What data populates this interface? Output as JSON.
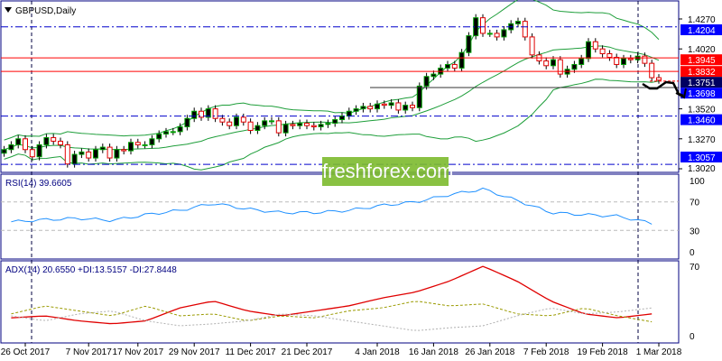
{
  "header": {
    "title": "GBPUSD,Daily"
  },
  "watermark": "freshforex.com",
  "colors": {
    "frame": "#000080",
    "up": "#00a000",
    "down": "#e00000",
    "band": "#1e9e3a",
    "rsi": "#1e90ff",
    "adx": "#e00000",
    "plus_di": "#9a9a00",
    "minus_di": "#b0b0b0",
    "level_blue": "#0000ff",
    "level_red": "#ff0000"
  },
  "chart_data": [
    {
      "type": "candlestick",
      "title": "GBPUSD,Daily",
      "ylim": [
        1.302,
        1.43
      ],
      "y_ticks": [
        "1.4270",
        "1.4020",
        "1.3520",
        "1.3270",
        "1.3020"
      ],
      "x_labels": [
        {
          "i": 3,
          "label": "26 Oct 2017"
        },
        {
          "i": 12,
          "label": "7 Nov 2017"
        },
        {
          "i": 19,
          "label": "17 Nov 2017"
        },
        {
          "i": 27,
          "label": "29 Nov 2017"
        },
        {
          "i": 35,
          "label": "11 Dec 2017"
        },
        {
          "i": 43,
          "label": "21 Dec 2017"
        },
        {
          "i": 53,
          "label": "4 Jan 2018"
        },
        {
          "i": 61,
          "label": "16 Jan 2018"
        },
        {
          "i": 69,
          "label": "26 Jan 2018"
        },
        {
          "i": 77,
          "label": "7 Feb 2018"
        },
        {
          "i": 85,
          "label": "19 Feb 2018"
        },
        {
          "i": 93,
          "label": "1 Mar 2018"
        }
      ],
      "close": [
        1.318,
        1.322,
        1.327,
        1.318,
        1.312,
        1.322,
        1.328,
        1.325,
        1.322,
        1.306,
        1.314,
        1.316,
        1.311,
        1.318,
        1.32,
        1.311,
        1.318,
        1.317,
        1.324,
        1.322,
        1.322,
        1.327,
        1.331,
        1.333,
        1.333,
        1.337,
        1.344,
        1.35,
        1.345,
        1.352,
        1.344,
        1.341,
        1.338,
        1.345,
        1.341,
        1.334,
        1.338,
        1.342,
        1.342,
        1.332,
        1.339,
        1.338,
        1.34,
        1.338,
        1.337,
        1.339,
        1.34,
        1.343,
        1.346,
        1.35,
        1.352,
        1.354,
        1.352,
        1.356,
        1.355,
        1.357,
        1.351,
        1.355,
        1.353,
        1.371,
        1.379,
        1.381,
        1.386,
        1.389,
        1.386,
        1.399,
        1.413,
        1.428,
        1.415,
        1.415,
        1.412,
        1.418,
        1.423,
        1.425,
        1.412,
        1.397,
        1.392,
        1.388,
        1.393,
        1.381,
        1.385,
        1.389,
        1.394,
        1.408,
        1.402,
        1.398,
        1.395,
        1.389,
        1.394,
        1.393,
        1.396,
        1.39,
        1.378,
        1.376
      ],
      "levels": [
        {
          "value": "1.4204",
          "style": "blue-dashdot"
        },
        {
          "value": "1.3945",
          "style": "red"
        },
        {
          "value": "1.3832",
          "style": "red"
        },
        {
          "value": "1.3751",
          "style": "current"
        },
        {
          "value": "1.3698",
          "style": "dark"
        },
        {
          "value": "1.3460",
          "style": "blue-dashdot"
        },
        {
          "value": "1.3057",
          "style": "blue-dashdot"
        }
      ],
      "indicator": "Bollinger Bands"
    },
    {
      "type": "line",
      "title": "RSI(14) 39.6605",
      "ylim": [
        0,
        100
      ],
      "y_ticks": [
        "100",
        "70",
        "30",
        "0"
      ],
      "levels": [
        70,
        30
      ],
      "values_weekly": [
        42,
        45,
        47,
        44,
        52,
        58,
        68,
        60,
        55,
        55,
        58,
        65,
        70,
        80,
        88,
        72,
        55,
        52,
        50,
        40
      ]
    },
    {
      "type": "line",
      "title": "ADX(14) 20.6550 +DI:13.5157 -DI:27.8448",
      "ylim": [
        0,
        70
      ],
      "y_ticks": [
        "70",
        "0"
      ],
      "series": [
        {
          "name": "ADX",
          "values_weekly": [
            18,
            20,
            15,
            12,
            15,
            28,
            35,
            25,
            20,
            25,
            30,
            38,
            44,
            55,
            70,
            55,
            35,
            22,
            18,
            22
          ]
        },
        {
          "name": "+DI",
          "values_weekly": [
            22,
            30,
            25,
            20,
            30,
            20,
            22,
            15,
            20,
            18,
            25,
            28,
            35,
            30,
            32,
            22,
            20,
            28,
            20,
            14
          ]
        },
        {
          "name": "-DI",
          "values_weekly": [
            20,
            15,
            22,
            25,
            15,
            10,
            12,
            15,
            22,
            20,
            15,
            10,
            5,
            8,
            10,
            20,
            28,
            22,
            24,
            28
          ]
        }
      ]
    }
  ]
}
